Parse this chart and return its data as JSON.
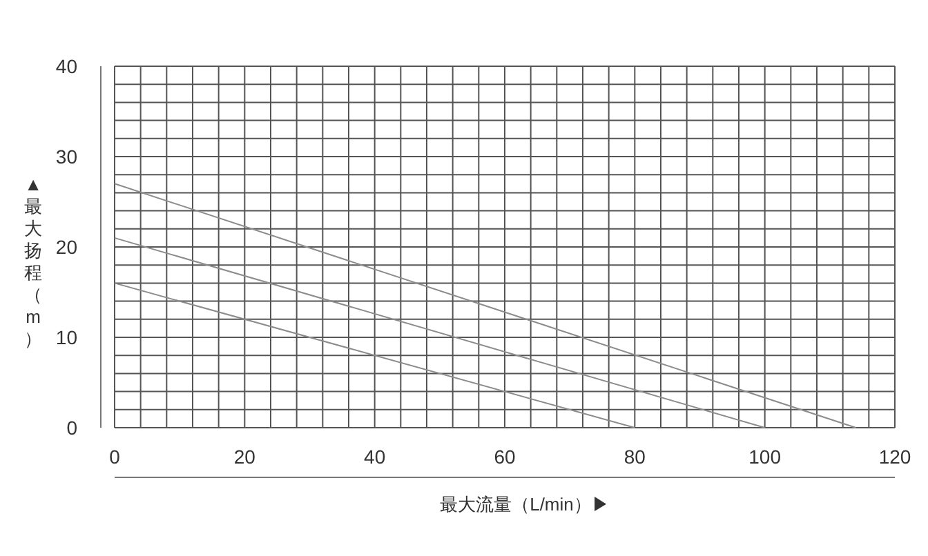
{
  "chart_data": {
    "type": "line",
    "xlabel": "最大流量（L/min）▶",
    "ylabel": "▲最大扬程（m）",
    "xlim": [
      0,
      120
    ],
    "ylim": [
      0,
      40
    ],
    "xticks": [
      0,
      {
        "value": 4,
        "label": null
      },
      {
        "value": 8,
        "label": null
      },
      {
        "value": 12,
        "label": null
      },
      {
        "value": 16,
        "label": null
      },
      20,
      {
        "value": 24,
        "label": null
      },
      {
        "value": 28,
        "label": null
      },
      {
        "value": 32,
        "label": null
      },
      {
        "value": 36,
        "label": null
      },
      40,
      {
        "value": 44,
        "label": null
      },
      {
        "value": 48,
        "label": null
      },
      {
        "value": 52,
        "label": null
      },
      {
        "value": 56,
        "label": null
      },
      60,
      {
        "value": 64,
        "label": null
      },
      {
        "value": 68,
        "label": null
      },
      {
        "value": 72,
        "label": null
      },
      {
        "value": 76,
        "label": null
      },
      80,
      {
        "value": 84,
        "label": null
      },
      {
        "value": 88,
        "label": null
      },
      {
        "value": 92,
        "label": null
      },
      {
        "value": 96,
        "label": null
      },
      100,
      {
        "value": 104,
        "label": null
      },
      {
        "value": 108,
        "label": null
      },
      {
        "value": 112,
        "label": null
      },
      {
        "value": 116,
        "label": null
      },
      120
    ],
    "yticks": [
      0,
      {
        "value": 2,
        "label": null
      },
      {
        "value": 4,
        "label": null
      },
      {
        "value": 6,
        "label": null
      },
      {
        "value": 8,
        "label": null
      },
      10,
      {
        "value": 12,
        "label": null
      },
      {
        "value": 14,
        "label": null
      },
      {
        "value": 16,
        "label": null
      },
      {
        "value": 18,
        "label": null
      },
      20,
      {
        "value": 22,
        "label": null
      },
      {
        "value": 24,
        "label": null
      },
      {
        "value": 26,
        "label": null
      },
      {
        "value": 28,
        "label": null
      },
      30,
      {
        "value": 32,
        "label": null
      },
      {
        "value": 34,
        "label": null
      },
      {
        "value": 36,
        "label": null
      },
      {
        "value": 38,
        "label": null
      },
      40
    ],
    "grid": true,
    "marker": "none",
    "line_style": "solid",
    "series": [
      {
        "color": "#8c8c8c",
        "x": [
          0,
          114
        ],
        "values": [
          27,
          0
        ]
      },
      {
        "color": "#8c8c8c",
        "x": [
          0,
          100
        ],
        "values": [
          21,
          0
        ]
      },
      {
        "color": "#8c8c8c",
        "x": [
          0,
          80
        ],
        "values": [
          16,
          0
        ]
      }
    ]
  }
}
